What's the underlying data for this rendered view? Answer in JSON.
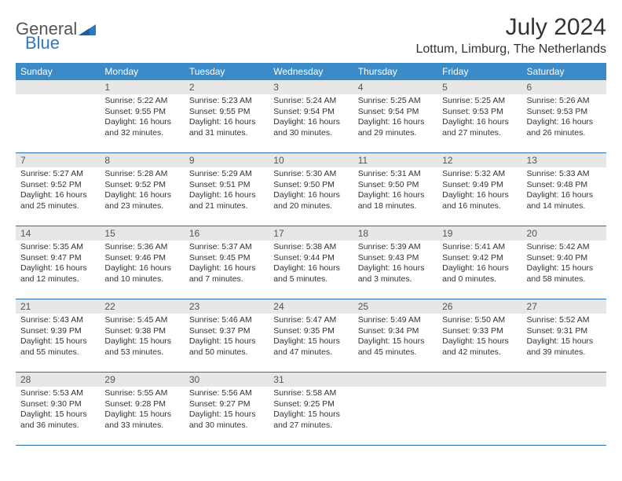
{
  "brand": {
    "part1": "General",
    "part2": "Blue"
  },
  "title": "July 2024",
  "location": "Lottum, Limburg, The Netherlands",
  "colors": {
    "header_bg": "#3b8bc9",
    "header_text": "#ffffff",
    "daynum_bg": "#e7e7e7",
    "rule": "#2b6da8",
    "brand_blue": "#2b79c2"
  },
  "weekdays": [
    "Sunday",
    "Monday",
    "Tuesday",
    "Wednesday",
    "Thursday",
    "Friday",
    "Saturday"
  ],
  "weeks": [
    [
      {
        "blank": true
      },
      {
        "n": "1",
        "sr": "5:22 AM",
        "ss": "9:55 PM",
        "dl": "16 hours and 32 minutes."
      },
      {
        "n": "2",
        "sr": "5:23 AM",
        "ss": "9:55 PM",
        "dl": "16 hours and 31 minutes."
      },
      {
        "n": "3",
        "sr": "5:24 AM",
        "ss": "9:54 PM",
        "dl": "16 hours and 30 minutes."
      },
      {
        "n": "4",
        "sr": "5:25 AM",
        "ss": "9:54 PM",
        "dl": "16 hours and 29 minutes."
      },
      {
        "n": "5",
        "sr": "5:25 AM",
        "ss": "9:53 PM",
        "dl": "16 hours and 27 minutes."
      },
      {
        "n": "6",
        "sr": "5:26 AM",
        "ss": "9:53 PM",
        "dl": "16 hours and 26 minutes."
      }
    ],
    [
      {
        "n": "7",
        "sr": "5:27 AM",
        "ss": "9:52 PM",
        "dl": "16 hours and 25 minutes."
      },
      {
        "n": "8",
        "sr": "5:28 AM",
        "ss": "9:52 PM",
        "dl": "16 hours and 23 minutes."
      },
      {
        "n": "9",
        "sr": "5:29 AM",
        "ss": "9:51 PM",
        "dl": "16 hours and 21 minutes."
      },
      {
        "n": "10",
        "sr": "5:30 AM",
        "ss": "9:50 PM",
        "dl": "16 hours and 20 minutes."
      },
      {
        "n": "11",
        "sr": "5:31 AM",
        "ss": "9:50 PM",
        "dl": "16 hours and 18 minutes."
      },
      {
        "n": "12",
        "sr": "5:32 AM",
        "ss": "9:49 PM",
        "dl": "16 hours and 16 minutes."
      },
      {
        "n": "13",
        "sr": "5:33 AM",
        "ss": "9:48 PM",
        "dl": "16 hours and 14 minutes."
      }
    ],
    [
      {
        "n": "14",
        "sr": "5:35 AM",
        "ss": "9:47 PM",
        "dl": "16 hours and 12 minutes."
      },
      {
        "n": "15",
        "sr": "5:36 AM",
        "ss": "9:46 PM",
        "dl": "16 hours and 10 minutes."
      },
      {
        "n": "16",
        "sr": "5:37 AM",
        "ss": "9:45 PM",
        "dl": "16 hours and 7 minutes."
      },
      {
        "n": "17",
        "sr": "5:38 AM",
        "ss": "9:44 PM",
        "dl": "16 hours and 5 minutes."
      },
      {
        "n": "18",
        "sr": "5:39 AM",
        "ss": "9:43 PM",
        "dl": "16 hours and 3 minutes."
      },
      {
        "n": "19",
        "sr": "5:41 AM",
        "ss": "9:42 PM",
        "dl": "16 hours and 0 minutes."
      },
      {
        "n": "20",
        "sr": "5:42 AM",
        "ss": "9:40 PM",
        "dl": "15 hours and 58 minutes."
      }
    ],
    [
      {
        "n": "21",
        "sr": "5:43 AM",
        "ss": "9:39 PM",
        "dl": "15 hours and 55 minutes."
      },
      {
        "n": "22",
        "sr": "5:45 AM",
        "ss": "9:38 PM",
        "dl": "15 hours and 53 minutes."
      },
      {
        "n": "23",
        "sr": "5:46 AM",
        "ss": "9:37 PM",
        "dl": "15 hours and 50 minutes."
      },
      {
        "n": "24",
        "sr": "5:47 AM",
        "ss": "9:35 PM",
        "dl": "15 hours and 47 minutes."
      },
      {
        "n": "25",
        "sr": "5:49 AM",
        "ss": "9:34 PM",
        "dl": "15 hours and 45 minutes."
      },
      {
        "n": "26",
        "sr": "5:50 AM",
        "ss": "9:33 PM",
        "dl": "15 hours and 42 minutes."
      },
      {
        "n": "27",
        "sr": "5:52 AM",
        "ss": "9:31 PM",
        "dl": "15 hours and 39 minutes."
      }
    ],
    [
      {
        "n": "28",
        "sr": "5:53 AM",
        "ss": "9:30 PM",
        "dl": "15 hours and 36 minutes."
      },
      {
        "n": "29",
        "sr": "5:55 AM",
        "ss": "9:28 PM",
        "dl": "15 hours and 33 minutes."
      },
      {
        "n": "30",
        "sr": "5:56 AM",
        "ss": "9:27 PM",
        "dl": "15 hours and 30 minutes."
      },
      {
        "n": "31",
        "sr": "5:58 AM",
        "ss": "9:25 PM",
        "dl": "15 hours and 27 minutes."
      },
      {
        "blank": true
      },
      {
        "blank": true
      },
      {
        "blank": true
      }
    ]
  ],
  "labels": {
    "sunrise": "Sunrise: ",
    "sunset": "Sunset: ",
    "daylight": "Daylight: "
  }
}
